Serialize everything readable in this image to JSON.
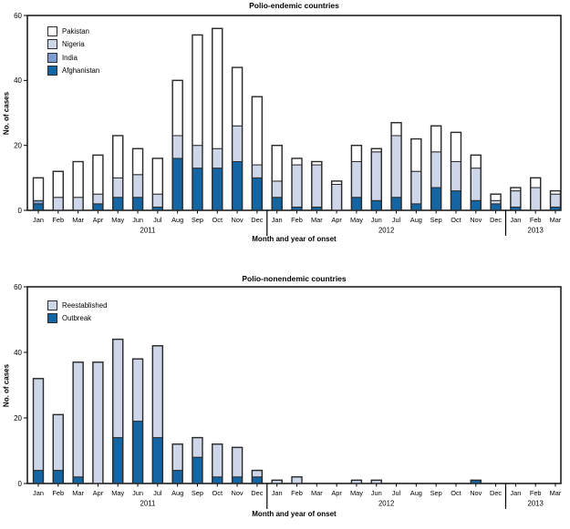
{
  "colors": {
    "dark_blue": "#1365a4",
    "medium_blue": "#7d9cd1",
    "light_blue": "#ced7e9",
    "white": "#ffffff",
    "bar_border": "#2b2b2b",
    "axis": "#000000"
  },
  "chart_data": [
    {
      "type": "bar",
      "stacked": true,
      "title": "Polio-endemic countries",
      "xlabel": "Month and year of onset",
      "ylabel": "No. of cases",
      "ylim": [
        0,
        60
      ],
      "yticks": [
        0,
        20,
        40,
        60
      ],
      "grid": false,
      "legend_position": "upper-left-inside",
      "legend": [
        "Pakistan",
        "Nigeria",
        "India",
        "Afghanistan"
      ],
      "months": [
        "Jan",
        "Feb",
        "Mar",
        "Apr",
        "May",
        "Jun",
        "Jul",
        "Aug",
        "Sep",
        "Oct",
        "Nov",
        "Dec",
        "Jan",
        "Feb",
        "Mar",
        "Apr",
        "May",
        "Jun",
        "Jul",
        "Aug",
        "Sep",
        "Oct",
        "Nov",
        "Dec",
        "Jan",
        "Feb",
        "Mar"
      ],
      "years": [
        {
          "label": "2011",
          "months": 12
        },
        {
          "label": "2012",
          "months": 12
        },
        {
          "label": "2013",
          "months": 3
        }
      ],
      "series": [
        {
          "name": "Afghanistan",
          "color": "#1365a4",
          "values": [
            2,
            0,
            0,
            2,
            4,
            4,
            1,
            16,
            13,
            13,
            15,
            10,
            4,
            1,
            1,
            0,
            4,
            3,
            4,
            2,
            7,
            6,
            3,
            2,
            1,
            0,
            1
          ]
        },
        {
          "name": "India",
          "color": "#7d9cd1",
          "values": [
            1,
            0,
            0,
            0,
            0,
            0,
            0,
            0,
            0,
            0,
            0,
            0,
            0,
            0,
            0,
            0,
            0,
            0,
            0,
            0,
            0,
            0,
            0,
            0,
            0,
            0,
            0
          ]
        },
        {
          "name": "Nigeria",
          "color": "#ced7e9",
          "values": [
            0,
            4,
            4,
            3,
            6,
            7,
            4,
            7,
            7,
            6,
            11,
            4,
            5,
            13,
            13,
            8,
            11,
            15,
            19,
            10,
            11,
            9,
            10,
            1,
            5,
            7,
            4
          ]
        },
        {
          "name": "Pakistan",
          "color": "#ffffff",
          "values": [
            7,
            8,
            11,
            12,
            13,
            8,
            11,
            17,
            34,
            37,
            18,
            21,
            11,
            2,
            1,
            1,
            5,
            1,
            4,
            10,
            8,
            9,
            4,
            2,
            1,
            3,
            1
          ]
        }
      ]
    },
    {
      "type": "bar",
      "stacked": true,
      "title": "Polio-nonendemic countries",
      "xlabel": "Month and year of onset",
      "ylabel": "No. of cases",
      "ylim": [
        0,
        60
      ],
      "yticks": [
        0,
        20,
        40,
        60
      ],
      "grid": false,
      "legend_position": "upper-left-inside",
      "legend": [
        "Reestablished",
        "Outbreak"
      ],
      "months": [
        "Jan",
        "Feb",
        "Mar",
        "Apr",
        "May",
        "Jun",
        "Jul",
        "Aug",
        "Sep",
        "Oct",
        "Nov",
        "Dec",
        "Jan",
        "Feb",
        "Mar",
        "Apr",
        "May",
        "Jun",
        "Jul",
        "Aug",
        "Sep",
        "Oct",
        "Nov",
        "Dec",
        "Jan",
        "Feb",
        "Mar"
      ],
      "years": [
        {
          "label": "2011",
          "months": 12
        },
        {
          "label": "2012",
          "months": 12
        },
        {
          "label": "2013",
          "months": 3
        }
      ],
      "series": [
        {
          "name": "Outbreak",
          "color": "#1365a4",
          "values": [
            4,
            4,
            2,
            0,
            14,
            19,
            14,
            4,
            8,
            2,
            2,
            2,
            0,
            0,
            0,
            0,
            0,
            0,
            0,
            0,
            0,
            0,
            1,
            0,
            0,
            0,
            0
          ]
        },
        {
          "name": "Reestablished",
          "color": "#ced7e9",
          "values": [
            28,
            17,
            35,
            37,
            30,
            19,
            28,
            8,
            6,
            10,
            9,
            2,
            1,
            2,
            0,
            0,
            1,
            1,
            0,
            0,
            0,
            0,
            0,
            0,
            0,
            0,
            0
          ]
        }
      ]
    }
  ]
}
